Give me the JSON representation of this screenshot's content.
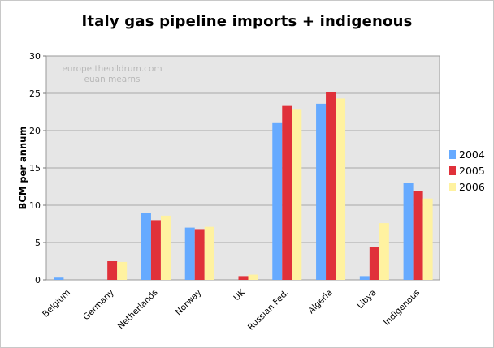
{
  "chart_data": {
    "type": "bar",
    "title": "Italy gas pipeline imports + indigenous",
    "ylabel": "BCM per annum",
    "xlabel": "",
    "ylim": [
      0,
      30
    ],
    "yticks": [
      "0",
      "5",
      "10",
      "15",
      "20",
      "25",
      "30"
    ],
    "grid": true,
    "legend_position": "right",
    "watermark": [
      "europe.theoildrum.com",
      "euan mearns"
    ],
    "categories": [
      "Belgium",
      "Germany",
      "Netherlands",
      "Norway",
      "UK",
      "Russian Fed.",
      "Algeria",
      "Libya",
      "Indigenous"
    ],
    "series": [
      {
        "name": "2004",
        "color": "#66aaff",
        "values": [
          0.3,
          0,
          9.0,
          7.0,
          0,
          21.0,
          23.6,
          0.5,
          13.0
        ]
      },
      {
        "name": "2005",
        "color": "#e0313a",
        "values": [
          0,
          2.5,
          8.0,
          6.8,
          0.5,
          23.3,
          25.2,
          4.4,
          11.9
        ]
      },
      {
        "name": "2006",
        "color": "#fff2a0",
        "values": [
          0,
          2.4,
          8.6,
          7.1,
          0.7,
          22.9,
          24.3,
          7.6,
          10.9
        ]
      }
    ]
  }
}
